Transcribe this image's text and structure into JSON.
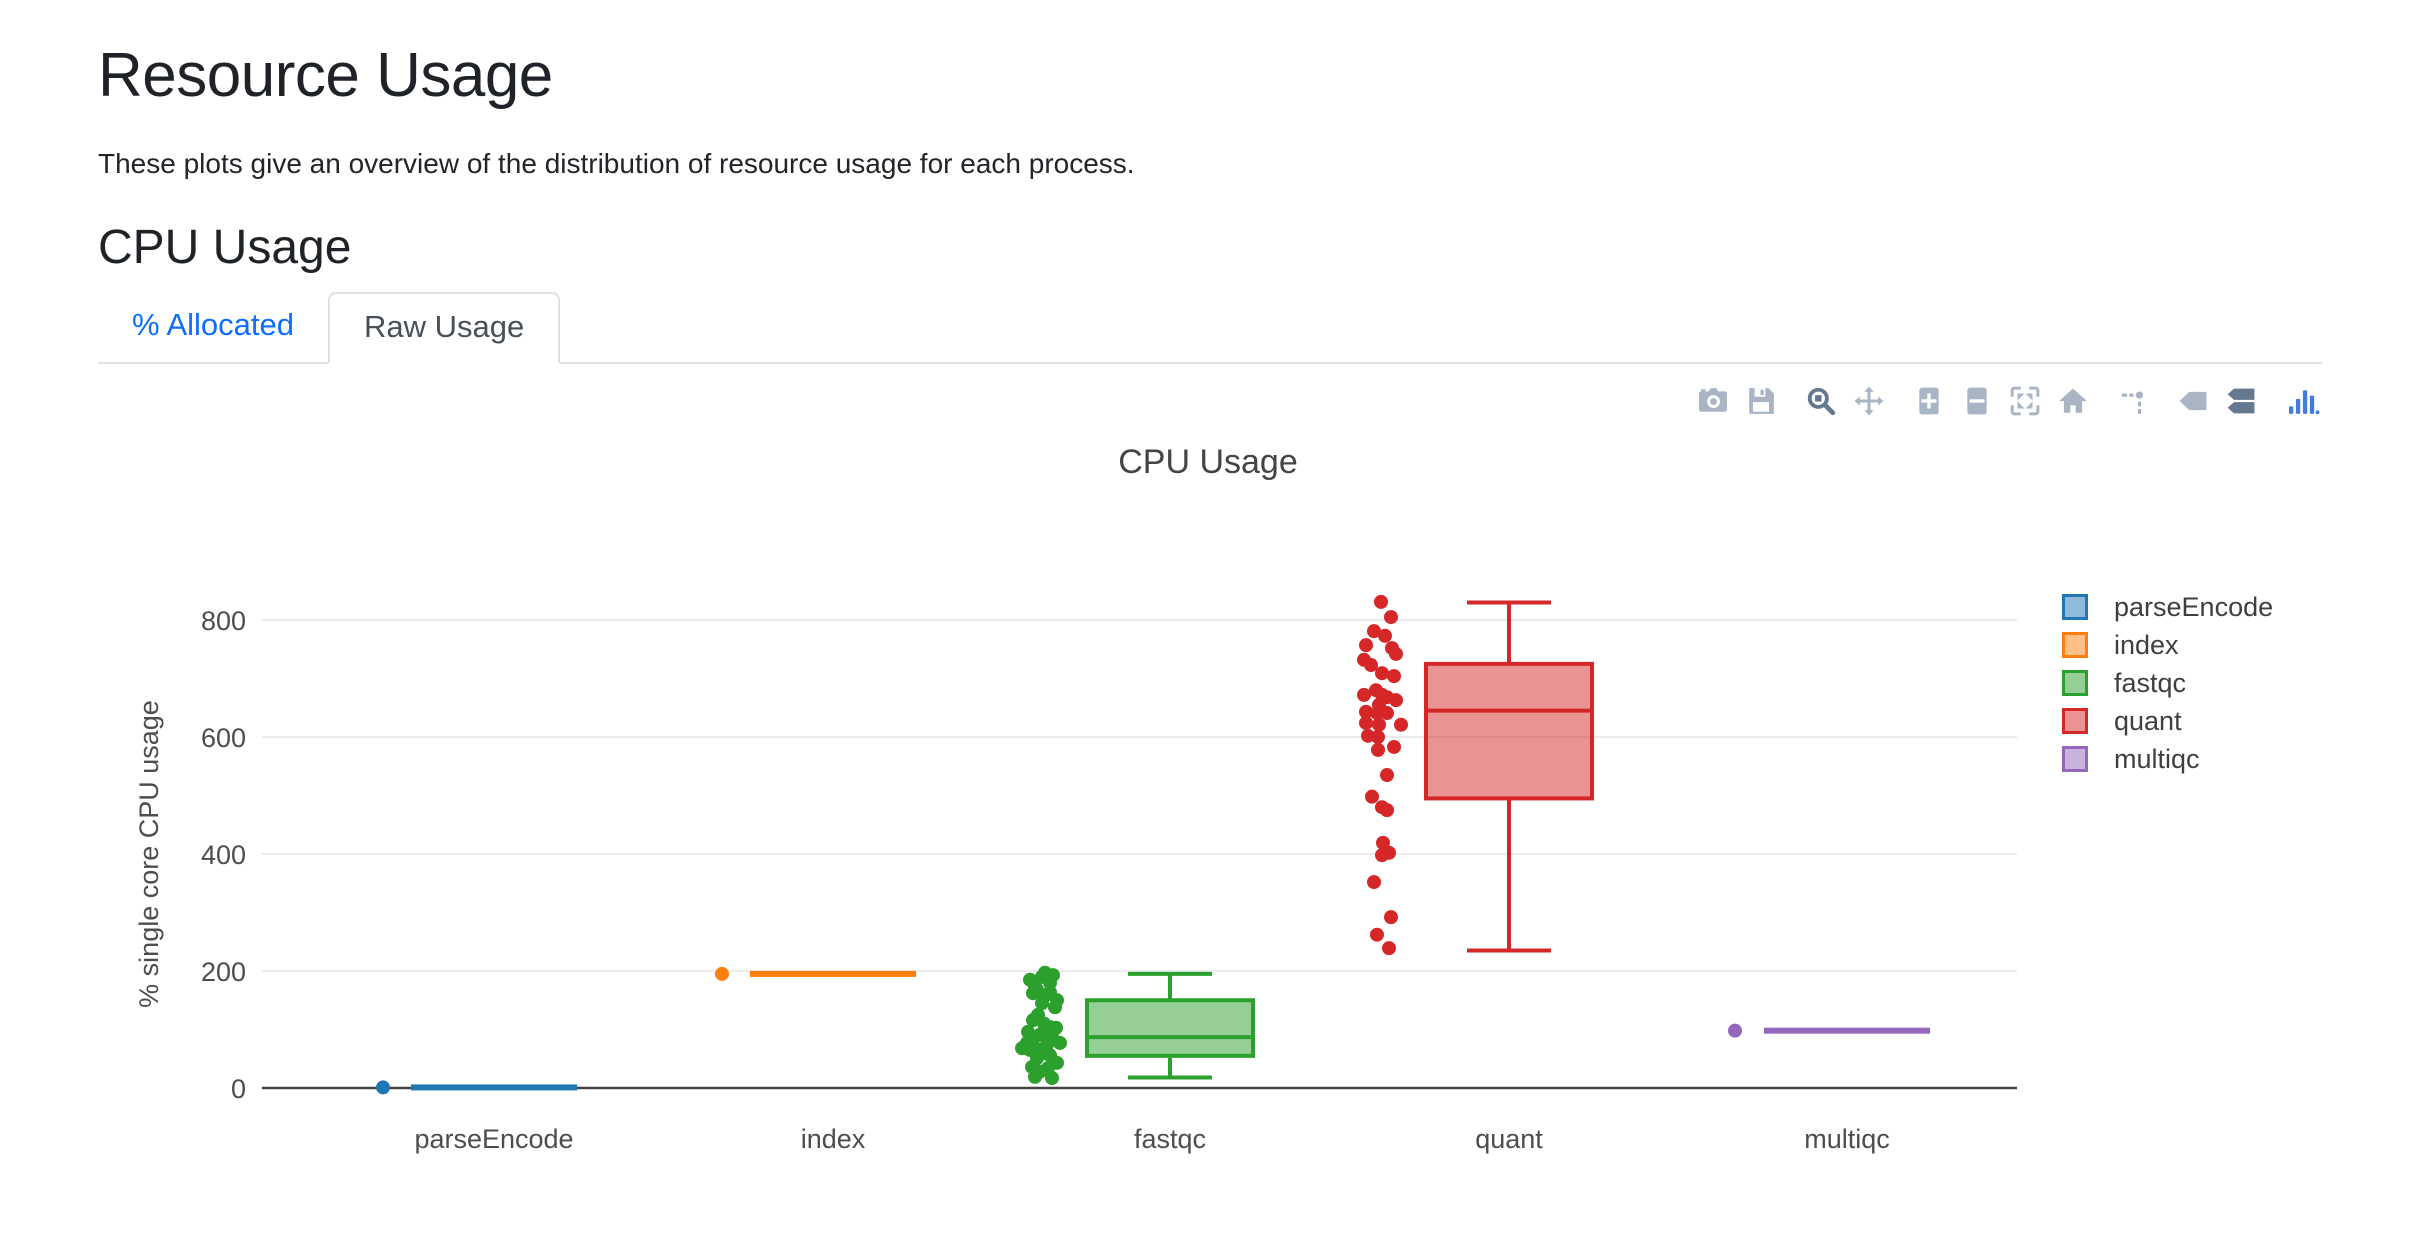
{
  "page": {
    "title": "Resource Usage",
    "subtitle": "These plots give an overview of the distribution of resource usage for each process.",
    "section_title": "CPU Usage"
  },
  "tabs": [
    {
      "label": "% Allocated",
      "active": false
    },
    {
      "label": "Raw Usage",
      "active": true
    }
  ],
  "toolbar": {
    "icons": [
      "camera-icon",
      "save-icon",
      "zoom-icon",
      "pan-icon",
      "zoom-in-icon",
      "zoom-out-icon",
      "autoscale-icon",
      "reset-axes-icon",
      "toggle-spikelines-icon",
      "hover-closest-icon",
      "hover-compare-icon",
      "plotly-logo-icon"
    ],
    "active_icons": [
      "zoom-icon",
      "hover-compare-icon"
    ],
    "colors": {
      "inactive": "#a9b4c4",
      "active": "#64788f",
      "logo": "#447adb"
    }
  },
  "chart_data": {
    "type": "box",
    "title": "CPU Usage",
    "xlabel": "",
    "ylabel": "% single core CPU usage",
    "yticks": [
      0,
      200,
      400,
      600,
      800
    ],
    "ylim": [
      -45,
      875
    ],
    "grid": true,
    "legend_position": "right",
    "zeroline_color": "#444444",
    "grid_color": "#ebebeb",
    "categories": [
      "parseEncode",
      "index",
      "fastqc",
      "quant",
      "multiqc"
    ],
    "series": [
      {
        "name": "parseEncode",
        "color": "#1f77b4",
        "box": {
          "min": 1,
          "q1": 1,
          "median": 1,
          "q3": 1,
          "max": 1
        },
        "samples": [
          [
            1,
            -111
          ]
        ]
      },
      {
        "name": "index",
        "color": "#ff7f0e",
        "box": {
          "min": 195,
          "q1": 195,
          "median": 195,
          "q3": 195,
          "max": 195
        },
        "samples": [
          [
            195,
            -111
          ]
        ]
      },
      {
        "name": "fastqc",
        "color": "#2ca02c",
        "box": {
          "min": 18,
          "q1": 55,
          "median": 87,
          "q3": 150,
          "max": 195
        },
        "samples": [
          [
            197,
            -125
          ],
          [
            193,
            -117
          ],
          [
            190,
            -128
          ],
          [
            185,
            -140
          ],
          [
            180,
            -120
          ],
          [
            174,
            -135
          ],
          [
            168,
            -133
          ],
          [
            164,
            -120
          ],
          [
            162,
            -137
          ],
          [
            158,
            -125
          ],
          [
            150,
            -113
          ],
          [
            145,
            -128
          ],
          [
            138,
            -115
          ],
          [
            125,
            -132
          ],
          [
            116,
            -137
          ],
          [
            110,
            -126
          ],
          [
            104,
            -120
          ],
          [
            103,
            -114
          ],
          [
            96,
            -142
          ],
          [
            91,
            -130
          ],
          [
            88,
            -118
          ],
          [
            82,
            -137
          ],
          [
            77,
            -143
          ],
          [
            77,
            -110
          ],
          [
            74,
            -123
          ],
          [
            68,
            -148
          ],
          [
            65,
            -130
          ],
          [
            65,
            -140
          ],
          [
            60,
            -126
          ],
          [
            56,
            -120
          ],
          [
            51,
            -133
          ],
          [
            43,
            -113
          ],
          [
            36,
            -138
          ],
          [
            34,
            -122
          ],
          [
            28,
            -130
          ],
          [
            19,
            -135
          ],
          [
            17,
            -118
          ]
        ]
      },
      {
        "name": "quant",
        "color": "#d62728",
        "box": {
          "min": 235,
          "q1": 495,
          "median": 645,
          "q3": 725,
          "max": 830
        },
        "samples": [
          [
            831,
            -128
          ],
          [
            805,
            -118
          ],
          [
            781,
            -135
          ],
          [
            773,
            -124
          ],
          [
            757,
            -143
          ],
          [
            752,
            -117
          ],
          [
            742,
            -113
          ],
          [
            732,
            -145
          ],
          [
            723,
            -138
          ],
          [
            709,
            -127
          ],
          [
            704,
            -115
          ],
          [
            680,
            -133
          ],
          [
            672,
            -145
          ],
          [
            672,
            -127
          ],
          [
            668,
            -122
          ],
          [
            663,
            -113
          ],
          [
            655,
            -130
          ],
          [
            643,
            -143
          ],
          [
            641,
            -132
          ],
          [
            641,
            -122
          ],
          [
            624,
            -143
          ],
          [
            621,
            -130
          ],
          [
            621,
            -108
          ],
          [
            602,
            -141
          ],
          [
            600,
            -131
          ],
          [
            583,
            -115
          ],
          [
            578,
            -131
          ],
          [
            535,
            -122
          ],
          [
            498,
            -137
          ],
          [
            480,
            -127
          ],
          [
            475,
            -122
          ],
          [
            419,
            -126
          ],
          [
            402,
            -120
          ],
          [
            398,
            -127
          ],
          [
            352,
            -135
          ],
          [
            292,
            -118
          ],
          [
            262,
            -132
          ],
          [
            239,
            -120
          ]
        ]
      },
      {
        "name": "multiqc",
        "color": "#9467bd",
        "box": {
          "min": 98,
          "q1": 98,
          "median": 98,
          "q3": 98,
          "max": 98
        },
        "samples": [
          [
            98,
            -112
          ]
        ]
      }
    ]
  }
}
